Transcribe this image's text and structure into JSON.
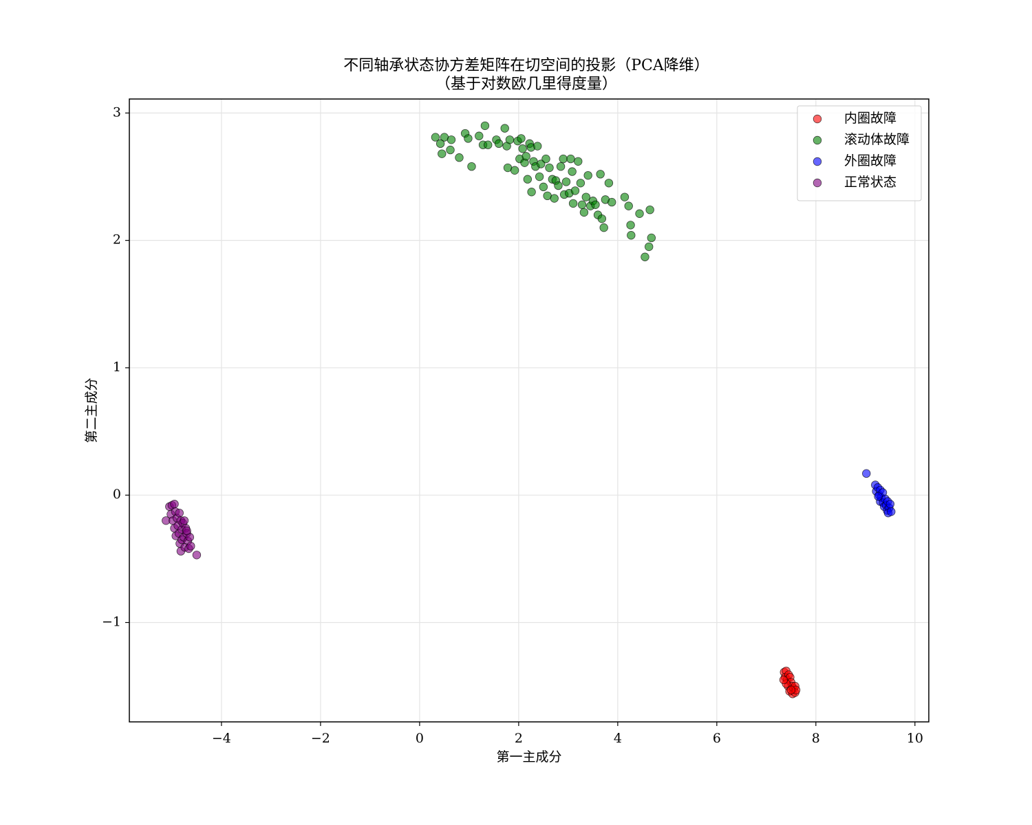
{
  "chart_data": {
    "type": "scatter",
    "title": "不同轴承状态协方差矩阵在切空间的投影（PCA降维）",
    "subtitle": "（基于对数欧几里得度量）",
    "x_label": "第一主成分",
    "y_label": "第二主成分",
    "xlim": [
      -5.86,
      10.28
    ],
    "ylim": [
      -1.78,
      3.11
    ],
    "xticks": [
      {
        "value": -4,
        "label": "−4"
      },
      {
        "value": -2,
        "label": "−2"
      },
      0,
      2,
      4,
      6,
      8,
      10
    ],
    "yticks": [
      {
        "value": -1,
        "label": "−1"
      },
      0,
      1,
      2,
      3
    ],
    "grid": true,
    "legend": "upper right",
    "series": [
      {
        "name": "内圈故障",
        "color": "#ff0000",
        "x": [
          7.36,
          7.4,
          7.38,
          7.42,
          7.45,
          7.48,
          7.44,
          7.5,
          7.52,
          7.47,
          7.55,
          7.58,
          7.53,
          7.58,
          7.6,
          7.4,
          7.5,
          7.35
        ],
        "values": [
          -1.39,
          -1.38,
          -1.43,
          -1.45,
          -1.41,
          -1.43,
          -1.5,
          -1.47,
          -1.5,
          -1.54,
          -1.52,
          -1.5,
          -1.56,
          -1.55,
          -1.53,
          -1.48,
          -1.53,
          -1.45
        ]
      },
      {
        "name": "滚动体故障",
        "color": "#008000",
        "x": [
          0.32,
          0.42,
          0.45,
          0.5,
          0.62,
          0.64,
          0.8,
          0.92,
          0.98,
          1.05,
          1.2,
          1.28,
          1.32,
          1.38,
          1.55,
          1.6,
          1.72,
          1.76,
          1.78,
          1.82,
          1.92,
          1.98,
          2.02,
          2.05,
          2.08,
          2.12,
          2.15,
          2.18,
          2.22,
          2.25,
          2.26,
          2.3,
          2.34,
          2.38,
          2.42,
          2.45,
          2.5,
          2.55,
          2.58,
          2.62,
          2.68,
          2.72,
          2.75,
          2.8,
          2.85,
          2.9,
          2.92,
          2.96,
          3.02,
          3.05,
          3.08,
          3.1,
          3.14,
          3.2,
          3.25,
          3.28,
          3.32,
          3.36,
          3.4,
          3.45,
          3.5,
          3.55,
          3.6,
          3.65,
          3.68,
          3.72,
          3.75,
          3.82,
          3.88,
          4.14,
          4.22,
          4.26,
          4.27,
          4.44,
          4.55,
          4.63,
          4.65,
          4.68
        ],
        "values": [
          2.81,
          2.76,
          2.68,
          2.81,
          2.71,
          2.79,
          2.65,
          2.84,
          2.8,
          2.58,
          2.82,
          2.75,
          2.9,
          2.75,
          2.79,
          2.76,
          2.88,
          2.74,
          2.57,
          2.79,
          2.55,
          2.78,
          2.64,
          2.8,
          2.72,
          2.61,
          2.66,
          2.48,
          2.76,
          2.73,
          2.38,
          2.62,
          2.58,
          2.74,
          2.5,
          2.6,
          2.42,
          2.64,
          2.35,
          2.57,
          2.48,
          2.33,
          2.47,
          2.43,
          2.58,
          2.64,
          2.36,
          2.46,
          2.37,
          2.64,
          2.54,
          2.29,
          2.39,
          2.62,
          2.45,
          2.28,
          2.22,
          2.34,
          2.51,
          2.27,
          2.31,
          2.28,
          2.2,
          2.52,
          2.17,
          2.1,
          2.32,
          2.45,
          2.3,
          2.34,
          2.27,
          2.12,
          2.04,
          2.21,
          1.87,
          1.95,
          2.24,
          2.02
        ]
      },
      {
        "name": "外圈故障",
        "color": "#0000ff",
        "x": [
          9.02,
          9.2,
          9.22,
          9.25,
          9.28,
          9.3,
          9.32,
          9.35,
          9.3,
          9.36,
          9.4,
          9.38,
          9.42,
          9.45,
          9.44,
          9.48,
          9.5,
          9.46,
          9.52,
          9.26
        ],
        "values": [
          0.17,
          0.08,
          0.03,
          0.06,
          0.0,
          0.04,
          -0.02,
          0.02,
          -0.05,
          -0.06,
          -0.03,
          -0.09,
          -0.08,
          -0.05,
          -0.12,
          -0.1,
          -0.07,
          -0.14,
          -0.13,
          -0.01
        ]
      },
      {
        "name": "正常状态",
        "color": "#800080",
        "x": [
          -5.12,
          -5.05,
          -5.0,
          -4.95,
          -5.02,
          -4.98,
          -4.93,
          -4.9,
          -4.95,
          -4.88,
          -4.85,
          -4.82,
          -4.92,
          -4.86,
          -4.8,
          -4.78,
          -4.75,
          -4.72,
          -4.84,
          -4.8,
          -4.76,
          -4.7,
          -4.68,
          -4.82,
          -4.74,
          -4.66,
          -4.62,
          -4.64,
          -4.5,
          -4.7
        ],
        "values": [
          -0.2,
          -0.09,
          -0.08,
          -0.07,
          -0.15,
          -0.2,
          -0.13,
          -0.18,
          -0.26,
          -0.24,
          -0.14,
          -0.2,
          -0.32,
          -0.3,
          -0.27,
          -0.22,
          -0.2,
          -0.26,
          -0.38,
          -0.35,
          -0.33,
          -0.3,
          -0.36,
          -0.44,
          -0.41,
          -0.42,
          -0.4,
          -0.33,
          -0.47,
          -0.28
        ]
      }
    ]
  }
}
